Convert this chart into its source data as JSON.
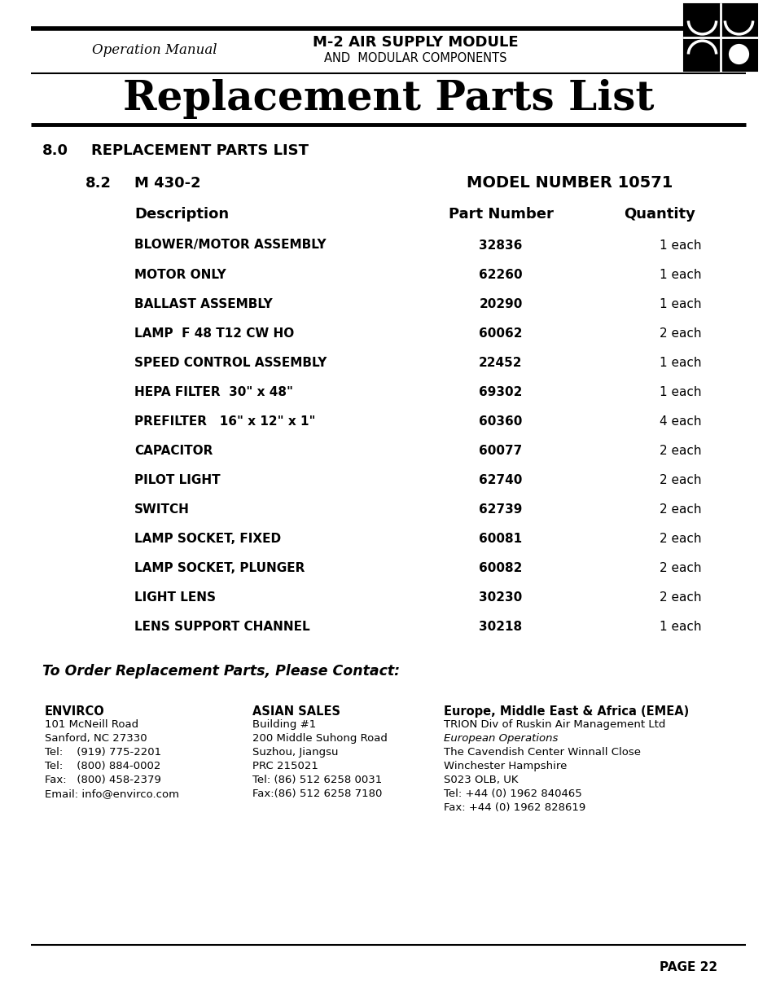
{
  "bg_color": "#ffffff",
  "header_left": "Operation Manual",
  "header_center_line1": "M-2 AIR SUPPLY MODULE",
  "header_center_line2": "AND  MODULAR COMPONENTS",
  "page_title": "Replacement Parts List",
  "section_number": "8.0",
  "section_title": "REPLACEMENT PARTS LIST",
  "subsection_number": "8.2",
  "subsection_title": "M 430-2",
  "model_label": "MODEL NUMBER 10571",
  "col_desc": "Description",
  "col_part": "Part Number",
  "col_qty": "Quantity",
  "parts": [
    [
      "BLOWER/MOTOR ASSEMBLY",
      "32836",
      "1 each"
    ],
    [
      "MOTOR ONLY",
      "62260",
      "1 each"
    ],
    [
      "BALLAST ASSEMBLY",
      "20290",
      "1 each"
    ],
    [
      "LAMP  F 48 T12 CW HO",
      "60062",
      "2 each"
    ],
    [
      "SPEED CONTROL ASSEMBLY",
      "22452",
      "1 each"
    ],
    [
      "HEPA FILTER  30\" x 48\"",
      "69302",
      "1 each"
    ],
    [
      "PREFILTER   16\" x 12\" x 1\"",
      "60360",
      "4 each"
    ],
    [
      "CAPACITOR",
      "60077",
      "2 each"
    ],
    [
      "PILOT LIGHT",
      "62740",
      "2 each"
    ],
    [
      "SWITCH",
      "62739",
      "2 each"
    ],
    [
      "LAMP SOCKET, FIXED",
      "60081",
      "2 each"
    ],
    [
      "LAMP SOCKET, PLUNGER",
      "60082",
      "2 each"
    ],
    [
      "LIGHT LENS",
      "30230",
      "2 each"
    ],
    [
      "LENS SUPPORT CHANNEL",
      "30218",
      "1 each"
    ]
  ],
  "order_title": "To Order Replacement Parts, Please Contact:",
  "col1_title": "ENVIRCO",
  "col1_lines": [
    "101 McNeill Road",
    "Sanford, NC 27330",
    "Tel:    (919) 775-2201",
    "Tel:    (800) 884-0002",
    "Fax:   (800) 458-2379",
    "Email: info@envirco.com"
  ],
  "col2_title": "ASIAN SALES",
  "col2_lines": [
    "Building #1",
    "200 Middle Suhong Road",
    "Suzhou, Jiangsu",
    "PRC 215021",
    "Tel: (86) 512 6258 0031",
    "Fax:(86) 512 6258 7180"
  ],
  "col3_title": "Europe, Middle East & Africa (EMEA)",
  "col3_lines": [
    "TRION Div of Ruskin Air Management Ltd",
    "European Operations",
    "The Cavendish Center Winnall Close",
    "Winchester Hampshire",
    "S023 OLB, UK",
    "Tel: +44 (0) 1962 840465",
    "Fax: +44 (0) 1962 828619"
  ],
  "col3_italic_line": 1,
  "page_number": "PAGE 22"
}
